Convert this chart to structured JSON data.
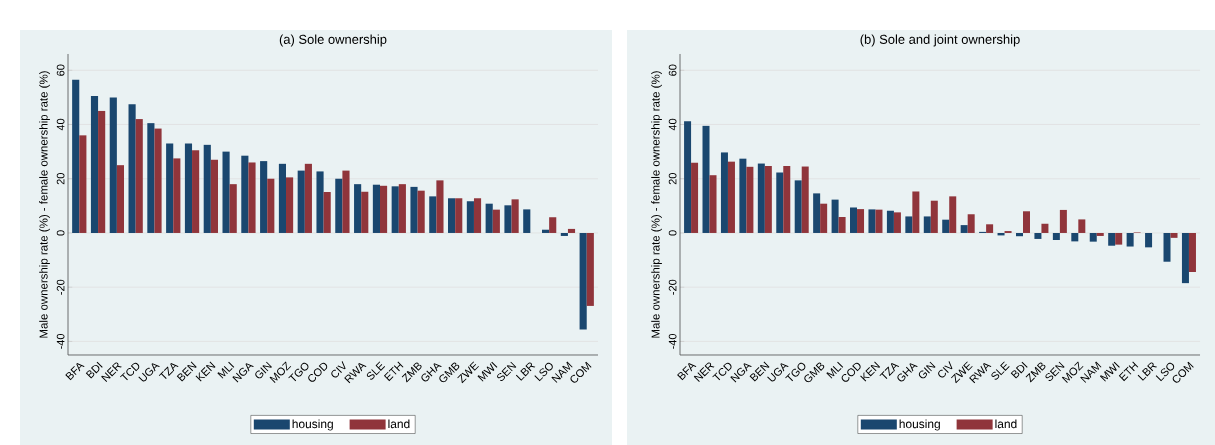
{
  "chart_data": [
    {
      "type": "bar",
      "title": "(a) Sole ownership",
      "ylabel": "Male ownership rate (%) - female ownership rate (%)",
      "categories": [
        "BFA",
        "BDI",
        "NER",
        "TCD",
        "UGA",
        "TZA",
        "BEN",
        "KEN",
        "MLI",
        "NGA",
        "GIN",
        "MOZ",
        "TGO",
        "COD",
        "CIV",
        "RWA",
        "SLE",
        "ETH",
        "ZMB",
        "GHA",
        "GMB",
        "ZWE",
        "MWI",
        "SEN",
        "LBR",
        "LSO",
        "NAM",
        "COM"
      ],
      "series": [
        {
          "name": "housing",
          "color": "#1a476f",
          "values": [
            56.5,
            50.5,
            50,
            47.5,
            40.5,
            33,
            33,
            32.5,
            30,
            28.5,
            26.5,
            25.5,
            23,
            22.7,
            20,
            18,
            17.8,
            17.2,
            17,
            13.5,
            12.8,
            11.7,
            10.8,
            10.2,
            8.7,
            1.2,
            -1.1,
            -35.6
          ]
        },
        {
          "name": "land",
          "color": "#90353b",
          "values": [
            36,
            45,
            25,
            42,
            38.5,
            27.5,
            30.5,
            27,
            18,
            26,
            20,
            20.5,
            25.5,
            15.1,
            23,
            15.2,
            17.4,
            18,
            15.6,
            19.4,
            12.8,
            12.8,
            8.6,
            12.4,
            null,
            5.8,
            1.5,
            -26.9
          ]
        }
      ],
      "ylim": [
        -45,
        66
      ],
      "yticks": [
        -40,
        -20,
        0,
        20,
        40,
        60
      ],
      "grid": "y",
      "legend": "bottom"
    },
    {
      "type": "bar",
      "title": "(b) Sole and joint ownership",
      "ylabel": "Male ownership rate (%) - female ownership rate (%)",
      "categories": [
        "BFA",
        "NER",
        "TCD",
        "NGA",
        "BEN",
        "UGA",
        "TGO",
        "GMB",
        "MLI",
        "COD",
        "KEN",
        "TZA",
        "GHA",
        "GIN",
        "CIV",
        "ZWE",
        "RWA",
        "SLE",
        "BDI",
        "ZMB",
        "SEN",
        "MOZ",
        "NAM",
        "MWI",
        "ETH",
        "LBR",
        "LSO",
        "COM"
      ],
      "series": [
        {
          "name": "housing",
          "color": "#1a476f",
          "values": [
            41.2,
            39.5,
            29.7,
            27.4,
            25.6,
            22.3,
            19.4,
            14.6,
            12.3,
            9.4,
            8.7,
            8.2,
            6.1,
            6.1,
            4.9,
            2.9,
            0.4,
            -0.9,
            -1.2,
            -2.2,
            -2.6,
            -3.1,
            -3.2,
            -4.7,
            -5,
            -5.3,
            -10.6,
            -18.5
          ]
        },
        {
          "name": "land",
          "color": "#90353b",
          "values": [
            25.9,
            21.3,
            26.3,
            24.4,
            24.7,
            24.7,
            24.5,
            10.8,
            5.9,
            8.8,
            8.6,
            7.6,
            15.3,
            11.9,
            13.5,
            6.9,
            3.2,
            0.7,
            8,
            3.4,
            8.5,
            5,
            -1.1,
            -4.3,
            0.2,
            null,
            -1.8,
            -14.4
          ]
        }
      ],
      "ylim": [
        -45,
        66
      ],
      "yticks": [
        -40,
        -20,
        0,
        20,
        40,
        60
      ],
      "grid": "y",
      "legend": "bottom"
    }
  ]
}
